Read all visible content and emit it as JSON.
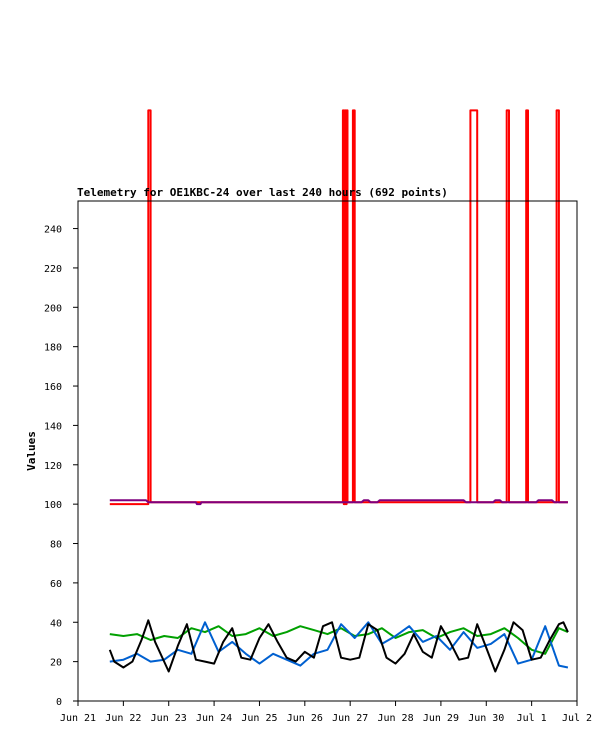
{
  "chart_data": {
    "type": "line",
    "title": "Telemetry for OE1KBC-24 over last 240 hours (692 points)",
    "ylabel": "Values",
    "xlabel": "",
    "x_ticks": [
      "Jun 21",
      "Jun 22",
      "Jun 23",
      "Jun 24",
      "Jun 25",
      "Jun 26",
      "Jun 27",
      "Jun 28",
      "Jun 29",
      "Jun 30",
      "Jul 1",
      "Jul 2"
    ],
    "y_ticks": [
      0,
      20,
      40,
      60,
      80,
      100,
      120,
      140,
      160,
      180,
      200,
      220,
      240
    ],
    "ylim": [
      0,
      254
    ],
    "xlim": [
      "2024-06-21",
      "2024-07-02"
    ],
    "grid": false,
    "series": [
      {
        "color": "#ff0000",
        "x": [
          0.7,
          1.55,
          1.55,
          1.6,
          1.6,
          5.84,
          5.84,
          5.86,
          5.86,
          5.88,
          5.88,
          5.9,
          5.9,
          5.92,
          5.92,
          5.94,
          5.94,
          6.06,
          6.06,
          6.1,
          6.1,
          8.65,
          8.65,
          8.8,
          8.8,
          9.45,
          9.45,
          9.5,
          9.5,
          9.88,
          9.88,
          9.92,
          9.92,
          10.55,
          10.55,
          10.6,
          10.6,
          10.8
        ],
        "y": [
          100,
          100,
          300,
          300,
          101,
          101,
          300,
          300,
          100,
          100,
          300,
          300,
          100,
          100,
          300,
          300,
          101,
          101,
          300,
          300,
          101,
          101,
          300,
          300,
          101,
          101,
          300,
          300,
          101,
          101,
          300,
          300,
          101,
          101,
          300,
          300,
          101,
          101
        ]
      },
      {
        "color": "#7f007f",
        "x": [
          0.7,
          1.5,
          1.55,
          2.6,
          2.62,
          2.7,
          2.72,
          6.25,
          6.3,
          6.4,
          6.45,
          6.6,
          6.65,
          8.5,
          8.55,
          9.15,
          9.2,
          9.3,
          9.35,
          10.1,
          10.15,
          10.45,
          10.5,
          10.8
        ],
        "y": [
          102,
          102,
          101,
          101,
          100,
          100,
          101,
          101,
          102,
          102,
          101,
          101,
          102,
          102,
          101,
          101,
          102,
          102,
          101,
          101,
          102,
          102,
          101,
          101
        ]
      },
      {
        "color": "#00a000",
        "x": [
          0.7,
          1.0,
          1.3,
          1.6,
          1.9,
          2.2,
          2.5,
          2.8,
          3.1,
          3.4,
          3.7,
          4.0,
          4.3,
          4.6,
          4.9,
          5.2,
          5.5,
          5.8,
          6.1,
          6.4,
          6.7,
          7.0,
          7.3,
          7.6,
          7.9,
          8.2,
          8.5,
          8.8,
          9.1,
          9.4,
          9.7,
          10.0,
          10.3,
          10.6,
          10.8
        ],
        "y": [
          34,
          33,
          34,
          31,
          33,
          32,
          37,
          35,
          38,
          33,
          34,
          37,
          33,
          35,
          38,
          36,
          34,
          37,
          33,
          34,
          37,
          32,
          35,
          36,
          32,
          35,
          37,
          33,
          34,
          37,
          32,
          26,
          24,
          37,
          35
        ]
      },
      {
        "color": "#0060d0",
        "x": [
          0.7,
          1.0,
          1.3,
          1.6,
          1.9,
          2.2,
          2.5,
          2.8,
          3.1,
          3.4,
          3.7,
          4.0,
          4.3,
          4.6,
          4.9,
          5.2,
          5.5,
          5.8,
          6.1,
          6.4,
          6.7,
          7.0,
          7.3,
          7.6,
          7.9,
          8.2,
          8.5,
          8.8,
          9.1,
          9.4,
          9.7,
          10.0,
          10.3,
          10.6,
          10.8
        ],
        "y": [
          20,
          21,
          24,
          20,
          21,
          26,
          24,
          40,
          25,
          30,
          24,
          19,
          24,
          21,
          18,
          24,
          26,
          39,
          32,
          40,
          29,
          33,
          38,
          30,
          33,
          26,
          35,
          27,
          29,
          34,
          19,
          21,
          38,
          18,
          17
        ]
      },
      {
        "color": "#000000",
        "x": [
          0.7,
          0.8,
          1.0,
          1.2,
          1.4,
          1.55,
          1.7,
          2.0,
          2.2,
          2.4,
          2.6,
          2.8,
          3.0,
          3.2,
          3.4,
          3.6,
          3.8,
          4.0,
          4.2,
          4.4,
          4.6,
          4.8,
          5.0,
          5.2,
          5.4,
          5.6,
          5.8,
          6.0,
          6.2,
          6.4,
          6.6,
          6.8,
          7.0,
          7.2,
          7.4,
          7.6,
          7.8,
          8.0,
          8.2,
          8.4,
          8.6,
          8.8,
          9.0,
          9.2,
          9.4,
          9.6,
          9.8,
          10.0,
          10.2,
          10.4,
          10.6,
          10.7,
          10.8
        ],
        "y": [
          26,
          20,
          17,
          20,
          31,
          41,
          30,
          15,
          28,
          39,
          21,
          20,
          19,
          30,
          37,
          22,
          21,
          32,
          39,
          30,
          22,
          20,
          25,
          22,
          38,
          40,
          22,
          21,
          22,
          39,
          36,
          22,
          19,
          24,
          34,
          25,
          22,
          38,
          30,
          21,
          22,
          39,
          27,
          15,
          26,
          40,
          36,
          21,
          22,
          31,
          39,
          40,
          35
        ]
      }
    ]
  }
}
